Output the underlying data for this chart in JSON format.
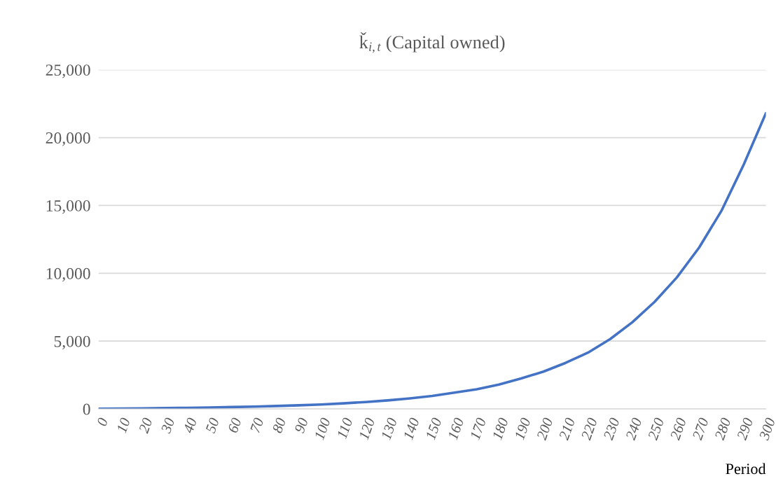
{
  "chart_data": {
    "type": "line",
    "title": "ǩ$_{i,t}$ (Capital owned)",
    "xlabel": "Period",
    "x": [
      0,
      10,
      20,
      30,
      40,
      50,
      60,
      70,
      80,
      90,
      100,
      110,
      120,
      130,
      140,
      150,
      160,
      170,
      180,
      190,
      200,
      210,
      220,
      230,
      240,
      250,
      260,
      270,
      280,
      290,
      300
    ],
    "series": [
      {
        "color": "#4472c4",
        "values": [
          20,
          30,
          45,
          65,
          85,
          110,
          140,
          175,
          220,
          270,
          330,
          410,
          510,
          630,
          780,
          960,
          1200,
          1450,
          1800,
          2250,
          2750,
          3400,
          4150,
          5150,
          6400,
          7900,
          9700,
          11900,
          14600,
          18000,
          21800
        ]
      }
    ],
    "xlim": [
      0,
      300
    ],
    "xticks": [
      0,
      10,
      20,
      30,
      40,
      50,
      60,
      70,
      80,
      90,
      100,
      110,
      120,
      130,
      140,
      150,
      160,
      170,
      180,
      190,
      200,
      210,
      220,
      230,
      240,
      250,
      260,
      270,
      280,
      290,
      300
    ],
    "ylim": [
      0,
      25000
    ],
    "yticks": [
      {
        "value": 0,
        "label": "0"
      },
      {
        "value": 5000,
        "label": "5,000"
      },
      {
        "value": 10000,
        "label": "10,000"
      },
      {
        "value": 15000,
        "label": "15,000"
      },
      {
        "value": 20000,
        "label": "20,000"
      },
      {
        "value": 25000,
        "label": "25,000"
      }
    ],
    "grid": "y",
    "marker": "none",
    "line_style": "solid",
    "legend": false
  }
}
